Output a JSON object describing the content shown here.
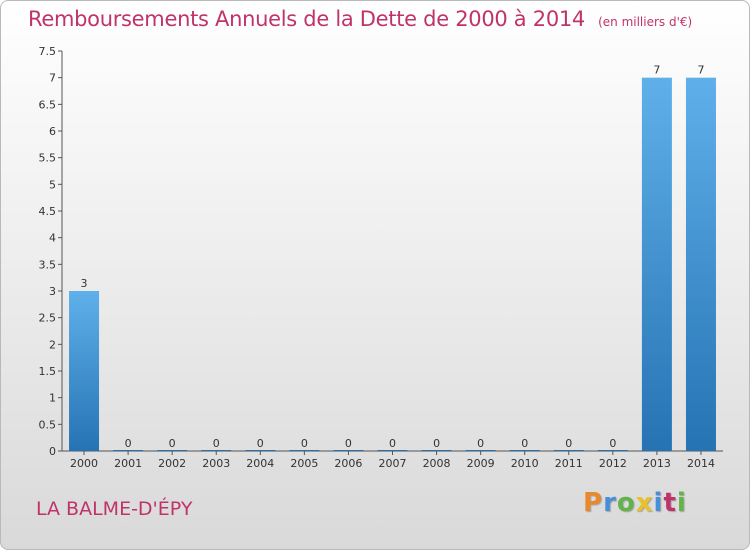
{
  "title": "Remboursements Annuels de la Dette de 2000 à 2014",
  "subtitle": "(en milliers d'€)",
  "commune": "LA BALME-D'ÉPY",
  "brand": {
    "letters": [
      "P",
      "r",
      "o",
      "x",
      "i",
      "t",
      "i"
    ]
  },
  "colors": {
    "title": "#c0336a",
    "bar_light": "#5fb0ea",
    "bar_dark": "#2673b3",
    "axis": "#555555",
    "brand": [
      "#e8892b",
      "#4a8fd6",
      "#62b34a",
      "#e8c12b",
      "#4a8fd6",
      "#c0336a"
    ]
  },
  "chart_data": {
    "type": "bar",
    "categories": [
      "2000",
      "2001",
      "2002",
      "2003",
      "2004",
      "2005",
      "2006",
      "2007",
      "2008",
      "2009",
      "2010",
      "2011",
      "2012",
      "2013",
      "2014"
    ],
    "values": [
      3,
      0,
      0,
      0,
      0,
      0,
      0,
      0,
      0,
      0,
      0,
      0,
      0,
      7,
      7
    ],
    "data_labels": [
      "3",
      "0",
      "0",
      "0",
      "0",
      "0",
      "0",
      "0",
      "0",
      "0",
      "0",
      "0",
      "0",
      "7",
      "7"
    ],
    "ylim": [
      0,
      7.5
    ],
    "yticks": [
      0,
      0.5,
      1,
      1.5,
      2,
      2.5,
      3,
      3.5,
      4,
      4.5,
      5,
      5.5,
      6,
      6.5,
      7,
      7.5
    ],
    "ytick_labels": [
      "0",
      "0.5",
      "1",
      "1.5",
      "2",
      "2.5",
      "3",
      "3.5",
      "4",
      "4.5",
      "5",
      "5.5",
      "6",
      "6.5",
      "7",
      "7.5"
    ],
    "grid": false,
    "legend": "none",
    "xlabel": "",
    "ylabel": ""
  }
}
